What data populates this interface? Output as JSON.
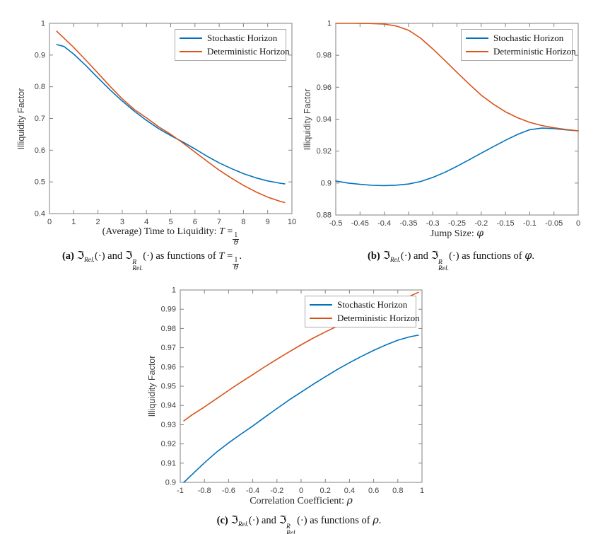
{
  "figure": {
    "background": "#ffffff",
    "axis_color": "#808080",
    "tick_label_color": "#404040",
    "series_colors": {
      "stochastic": "#0072BD",
      "deterministic": "#D95319"
    }
  },
  "chart_data": [
    {
      "id": "a",
      "type": "line",
      "xlabel_text": "(Average) Time to Liquidity:",
      "xlabel_var": "T",
      "xlabel_eq": "=",
      "xlabel_frac_num": "1",
      "xlabel_frac_den": "ϑ",
      "ylabel": "Illiquidity Factor",
      "xlim": [
        0,
        10
      ],
      "ylim": [
        0.4,
        1
      ],
      "grid": false,
      "legend_position": "top-right",
      "xtick_values": [
        0,
        1,
        2,
        3,
        4,
        5,
        6,
        7,
        8,
        9,
        10
      ],
      "xtick_labels": [
        "0",
        "1",
        "2",
        "3",
        "4",
        "5",
        "6",
        "7",
        "8",
        "9",
        "10"
      ],
      "ytick_values": [
        0.4,
        0.5,
        0.6,
        0.7,
        0.8,
        0.9,
        1
      ],
      "ytick_labels": [
        "0.4",
        "0.5",
        "0.6",
        "0.7",
        "0.8",
        "0.9",
        "1"
      ],
      "legend": [
        "Stochastic Horizon",
        "Deterministic Horizon"
      ],
      "series": [
        {
          "name": "Stochastic Horizon",
          "color": "#0072BD",
          "points": [
            [
              0.3,
              0.933
            ],
            [
              0.6,
              0.927
            ],
            [
              1.0,
              0.903
            ],
            [
              1.5,
              0.867
            ],
            [
              2.0,
              0.828
            ],
            [
              2.5,
              0.79
            ],
            [
              3.0,
              0.755
            ],
            [
              3.5,
              0.723
            ],
            [
              4.0,
              0.694
            ],
            [
              4.5,
              0.668
            ],
            [
              5.0,
              0.646
            ],
            [
              5.5,
              0.626
            ],
            [
              6.0,
              0.604
            ],
            [
              6.5,
              0.581
            ],
            [
              7.0,
              0.56
            ],
            [
              7.5,
              0.542
            ],
            [
              8.0,
              0.526
            ],
            [
              8.5,
              0.513
            ],
            [
              9.0,
              0.503
            ],
            [
              9.5,
              0.496
            ],
            [
              9.7,
              0.494
            ]
          ]
        },
        {
          "name": "Deterministic Horizon",
          "color": "#D95319",
          "points": [
            [
              0.3,
              0.975
            ],
            [
              0.6,
              0.953
            ],
            [
              1.0,
              0.924
            ],
            [
              1.5,
              0.884
            ],
            [
              2.0,
              0.843
            ],
            [
              2.5,
              0.801
            ],
            [
              3.0,
              0.762
            ],
            [
              3.5,
              0.728
            ],
            [
              4.0,
              0.702
            ],
            [
              4.5,
              0.674
            ],
            [
              5.0,
              0.65
            ],
            [
              5.5,
              0.623
            ],
            [
              6.0,
              0.594
            ],
            [
              6.5,
              0.565
            ],
            [
              7.0,
              0.537
            ],
            [
              7.5,
              0.512
            ],
            [
              8.0,
              0.489
            ],
            [
              8.5,
              0.469
            ],
            [
              9.0,
              0.452
            ],
            [
              9.5,
              0.439
            ],
            [
              9.7,
              0.435
            ]
          ]
        }
      ]
    },
    {
      "id": "b",
      "type": "line",
      "xlabel_text": "Jump Size:",
      "xlabel_var": "φ",
      "ylabel": "Illiquidity Factor",
      "xlim": [
        -0.5,
        0
      ],
      "ylim": [
        0.88,
        1
      ],
      "grid": false,
      "legend_position": "top-right",
      "xtick_values": [
        -0.5,
        -0.45,
        -0.4,
        -0.35,
        -0.3,
        -0.25,
        -0.2,
        -0.15,
        -0.1,
        -0.05,
        0
      ],
      "xtick_labels": [
        "-0.5",
        "-0.45",
        "-0.4",
        "-0.35",
        "-0.3",
        "-0.25",
        "-0.2",
        "-0.15",
        "-0.1",
        "-0.05",
        "0"
      ],
      "ytick_values": [
        0.88,
        0.9,
        0.92,
        0.94,
        0.96,
        0.98,
        1
      ],
      "ytick_labels": [
        "0.88",
        "0.9",
        "0.92",
        "0.94",
        "0.96",
        "0.98",
        "1"
      ],
      "legend": [
        "Stochastic Horizon",
        "Deterministic Horizon"
      ],
      "series": [
        {
          "name": "Stochastic Horizon",
          "color": "#0072BD",
          "points": [
            [
              -0.5,
              0.9013
            ],
            [
              -0.475,
              0.9
            ],
            [
              -0.45,
              0.8992
            ],
            [
              -0.425,
              0.8986
            ],
            [
              -0.4,
              0.8984
            ],
            [
              -0.375,
              0.8987
            ],
            [
              -0.35,
              0.8994
            ],
            [
              -0.325,
              0.901
            ],
            [
              -0.3,
              0.9035
            ],
            [
              -0.275,
              0.9067
            ],
            [
              -0.25,
              0.9105
            ],
            [
              -0.225,
              0.9146
            ],
            [
              -0.2,
              0.9187
            ],
            [
              -0.175,
              0.9228
            ],
            [
              -0.15,
              0.9268
            ],
            [
              -0.125,
              0.9305
            ],
            [
              -0.1,
              0.9334
            ],
            [
              -0.075,
              0.9344
            ],
            [
              -0.05,
              0.9341
            ],
            [
              -0.025,
              0.9333
            ],
            [
              0,
              0.9327
            ]
          ]
        },
        {
          "name": "Deterministic Horizon",
          "color": "#D95319",
          "points": [
            [
              -0.5,
              1.0
            ],
            [
              -0.46,
              1.0
            ],
            [
              -0.43,
              0.9999
            ],
            [
              -0.4,
              0.9995
            ],
            [
              -0.375,
              0.9983
            ],
            [
              -0.35,
              0.9957
            ],
            [
              -0.325,
              0.9907
            ],
            [
              -0.3,
              0.984
            ],
            [
              -0.275,
              0.9768
            ],
            [
              -0.25,
              0.9693
            ],
            [
              -0.225,
              0.962
            ],
            [
              -0.2,
              0.955
            ],
            [
              -0.175,
              0.9494
            ],
            [
              -0.15,
              0.9446
            ],
            [
              -0.125,
              0.9409
            ],
            [
              -0.1,
              0.938
            ],
            [
              -0.075,
              0.936
            ],
            [
              -0.05,
              0.9346
            ],
            [
              -0.025,
              0.9336
            ],
            [
              0,
              0.9327
            ]
          ]
        }
      ]
    },
    {
      "id": "c",
      "type": "line",
      "xlabel_text": "Correlation Coefficient:",
      "xlabel_var": "ρ",
      "ylabel": "Illiquidity Factor",
      "xlim": [
        -1,
        1
      ],
      "ylim": [
        0.9,
        1
      ],
      "grid": false,
      "legend_position": "top-right",
      "xtick_values": [
        -1,
        -0.8,
        -0.6,
        -0.4,
        -0.2,
        0,
        0.2,
        0.4,
        0.6,
        0.8,
        1
      ],
      "xtick_labels": [
        "-1",
        "-0.8",
        "-0.6",
        "-0.4",
        "-0.2",
        "0",
        "0.2",
        "0.4",
        "0.6",
        "0.8",
        "1"
      ],
      "ytick_values": [
        0.9,
        0.91,
        0.92,
        0.93,
        0.94,
        0.95,
        0.96,
        0.97,
        0.98,
        0.99,
        1
      ],
      "ytick_labels": [
        "0.9",
        "0.91",
        "0.92",
        "0.93",
        "0.94",
        "0.95",
        "0.96",
        "0.97",
        "0.98",
        "0.99",
        "1"
      ],
      "legend": [
        "Stochastic Horizon",
        "Deterministic Horizon"
      ],
      "series": [
        {
          "name": "Stochastic Horizon",
          "color": "#0072BD",
          "points": [
            [
              -0.97,
              0.9
            ],
            [
              -0.9,
              0.9042
            ],
            [
              -0.8,
              0.9102
            ],
            [
              -0.7,
              0.9157
            ],
            [
              -0.6,
              0.9205
            ],
            [
              -0.5,
              0.925
            ],
            [
              -0.4,
              0.9293
            ],
            [
              -0.3,
              0.9339
            ],
            [
              -0.2,
              0.9384
            ],
            [
              -0.1,
              0.9428
            ],
            [
              0,
              0.9469
            ],
            [
              0.1,
              0.951
            ],
            [
              0.2,
              0.9549
            ],
            [
              0.3,
              0.9587
            ],
            [
              0.4,
              0.9622
            ],
            [
              0.5,
              0.9655
            ],
            [
              0.6,
              0.9686
            ],
            [
              0.7,
              0.9714
            ],
            [
              0.8,
              0.9739
            ],
            [
              0.9,
              0.9757
            ],
            [
              0.97,
              0.9765
            ]
          ]
        },
        {
          "name": "Deterministic Horizon",
          "color": "#D95319",
          "points": [
            [
              -0.97,
              0.932
            ],
            [
              -0.9,
              0.9352
            ],
            [
              -0.8,
              0.9392
            ],
            [
              -0.7,
              0.9435
            ],
            [
              -0.6,
              0.9478
            ],
            [
              -0.5,
              0.952
            ],
            [
              -0.4,
              0.956
            ],
            [
              -0.3,
              0.9601
            ],
            [
              -0.2,
              0.964
            ],
            [
              -0.1,
              0.9678
            ],
            [
              0,
              0.9715
            ],
            [
              0.1,
              0.975
            ],
            [
              0.2,
              0.9782
            ],
            [
              0.3,
              0.9812
            ],
            [
              0.4,
              0.984
            ],
            [
              0.5,
              0.9866
            ],
            [
              0.6,
              0.9891
            ],
            [
              0.7,
              0.9915
            ],
            [
              0.8,
              0.9945
            ],
            [
              0.9,
              0.9968
            ],
            [
              0.97,
              0.9988
            ]
          ]
        }
      ]
    }
  ],
  "captions": {
    "a": {
      "tag": "(a)",
      "frak1": "ℑ",
      "frak1_sub": "Rel.",
      "arg1": "(·)",
      "mid": "and",
      "frak2": "ℑ",
      "frak2_sup": "R",
      "frak2_sub": "Rel.",
      "arg2": "(·)",
      "rest": "as functions of",
      "var": "T",
      "eq": "=",
      "frac_num": "1",
      "frac_den": "ϑ",
      "end": "."
    },
    "b": {
      "tag": "(b)",
      "frak1": "ℑ",
      "frak1_sub": "Rel.",
      "arg1": "(·)",
      "mid": "and",
      "frak2": "ℑ",
      "frak2_sup": "R",
      "frak2_sub": "Rel.",
      "arg2": "(·)",
      "rest": "as functions of",
      "var": "φ",
      "end": "."
    },
    "c": {
      "tag": "(c)",
      "frak1": "ℑ",
      "frak1_sub": "Rel.",
      "arg1": "(·)",
      "mid": "and",
      "frak2": "ℑ",
      "frak2_sup": "R",
      "frak2_sub": "Rel.",
      "arg2": "(·)",
      "rest": "as functions of",
      "var": "ρ",
      "end": "."
    }
  }
}
